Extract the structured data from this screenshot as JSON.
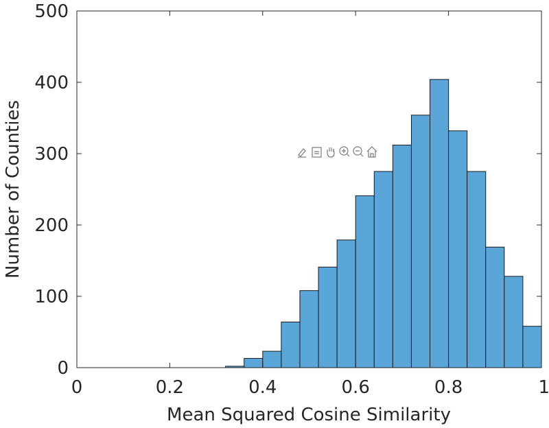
{
  "chart_data": {
    "type": "bar",
    "title": "",
    "xlabel": "Mean Squared Cosine Similarity",
    "ylabel": "Number of Counties",
    "xlim": [
      0,
      1
    ],
    "ylim": [
      0,
      500
    ],
    "xticks": [
      "0",
      "0.2",
      "0.4",
      "0.6",
      "0.8",
      "1"
    ],
    "xtick_values": [
      0,
      0.2,
      0.4,
      0.6,
      0.8,
      1
    ],
    "yticks": [
      "0",
      "100",
      "200",
      "300",
      "400",
      "500"
    ],
    "ytick_values": [
      0,
      100,
      200,
      300,
      400,
      500
    ],
    "bin_edges": [
      0.32,
      0.36,
      0.4,
      0.44,
      0.48,
      0.52,
      0.56,
      0.6,
      0.64,
      0.68,
      0.72,
      0.76,
      0.8,
      0.84,
      0.88,
      0.92,
      0.96,
      1.0
    ],
    "values": [
      2,
      13,
      23,
      64,
      108,
      141,
      179,
      241,
      275,
      312,
      354,
      404,
      332,
      275,
      169,
      128,
      58
    ],
    "bar_color": "#5BA6D8",
    "grid": false,
    "legend": "none"
  },
  "toolbar": {
    "icons": [
      "brush-icon",
      "datatip-icon",
      "pan-icon",
      "zoom-in-icon",
      "zoom-out-icon",
      "home-icon"
    ]
  }
}
